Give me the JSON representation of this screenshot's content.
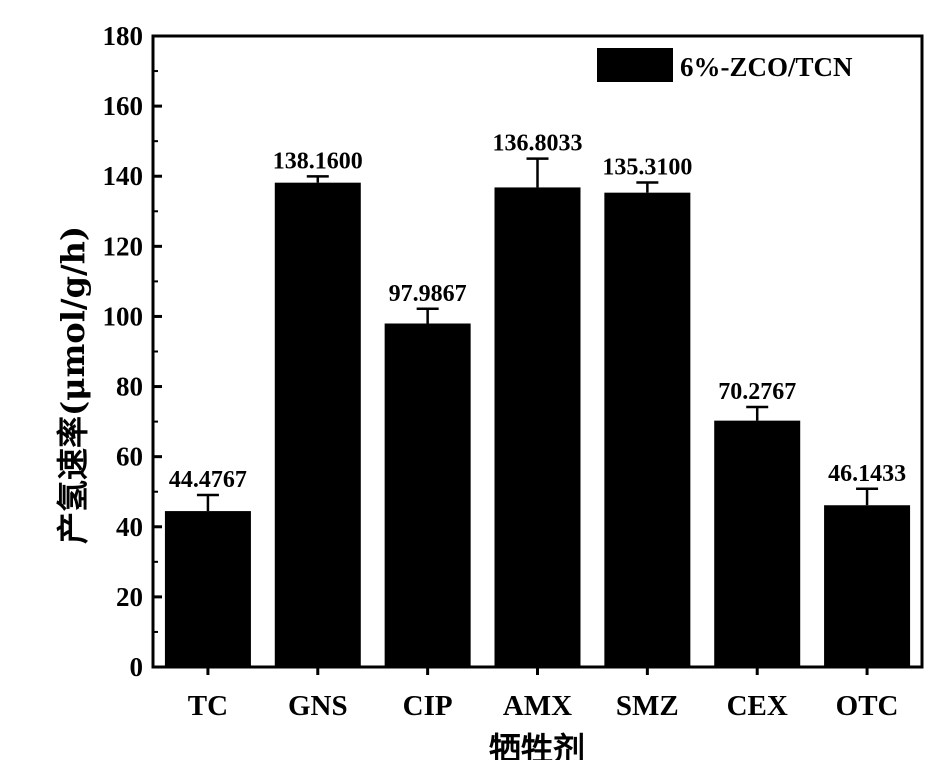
{
  "chart_data": {
    "type": "bar",
    "categories": [
      "TC",
      "GNS",
      "CIP",
      "AMX",
      "SMZ",
      "CEX",
      "OTC"
    ],
    "series": [
      {
        "name": "6%-ZCO/TCN",
        "values": [
          44.4767,
          138.16,
          97.9867,
          136.8033,
          135.31,
          70.2767,
          46.1433
        ],
        "error": [
          4.6,
          1.8,
          4.2,
          8.2,
          2.9,
          3.9,
          4.7
        ],
        "data_labels": [
          "44.4767",
          "138.1600",
          "97.9867",
          "136.8033",
          "135.3100",
          "70.2767",
          "46.1433"
        ],
        "color": "#000000"
      }
    ],
    "xlabel": "牺牲剂",
    "ylabel": "产氢速率(μmol/g/h)",
    "ylim": [
      0,
      180
    ],
    "yticks": [
      0,
      20,
      40,
      60,
      80,
      100,
      120,
      140,
      160,
      180
    ],
    "grid": false,
    "legend_position": "top-right"
  }
}
